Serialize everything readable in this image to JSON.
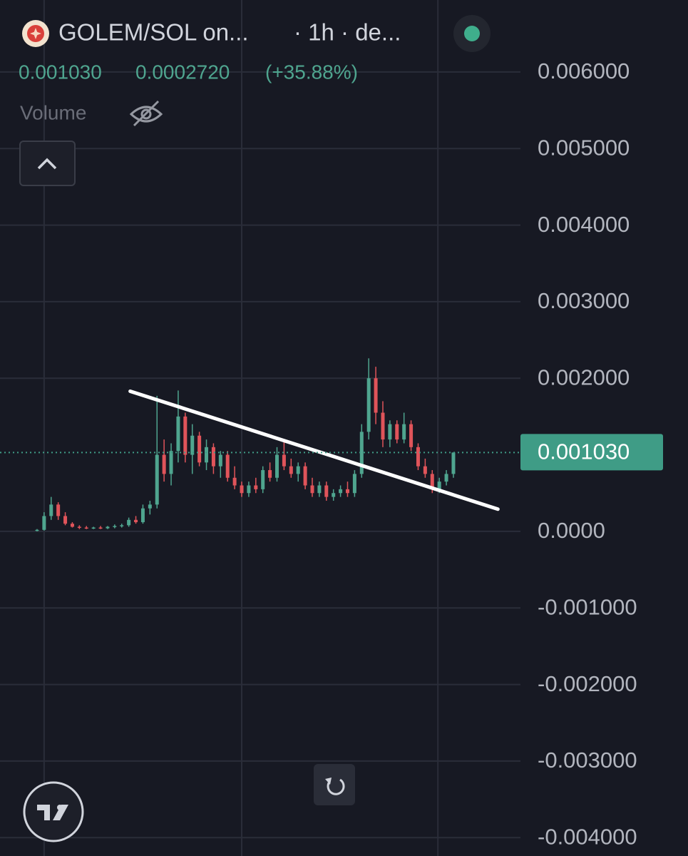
{
  "header": {
    "symbol": "GOLEM/SOL on...",
    "interval": "· 1h · de...",
    "price": "0.001030",
    "change": "0.0002720",
    "change_pct": "(+35.88%)",
    "volume_label": "Volume"
  },
  "chart_data": {
    "type": "candlestick",
    "open": [
      1e-05,
      2e-05,
      0.0002,
      0.00035,
      0.0002,
      0.0001,
      6e-05,
      5e-05,
      4e-05,
      5e-05,
      4e-05,
      6e-05,
      7e-05,
      8e-05,
      0.00015,
      0.00012,
      0.0003,
      0.00035,
      0.001,
      0.00075,
      0.00105,
      0.0015,
      0.001,
      0.00125,
      0.0009,
      0.0011,
      0.00085,
      0.001,
      0.0007,
      0.0006,
      0.0005,
      0.0006,
      0.00055,
      0.0008,
      0.0007,
      0.001,
      0.00085,
      0.00075,
      0.00085,
      0.0006,
      0.0005,
      0.0006,
      0.00045,
      0.0005,
      0.00055,
      0.0005,
      0.00075,
      0.0013,
      0.002,
      0.00155,
      0.0012,
      0.0014,
      0.0012,
      0.0014,
      0.0011,
      0.00085,
      0.00075,
      0.00055,
      0.00065,
      0.00075
    ],
    "high": [
      3e-05,
      0.00025,
      0.00045,
      0.00038,
      0.00025,
      0.00012,
      8e-05,
      7e-05,
      6e-05,
      7e-05,
      7e-05,
      9e-05,
      0.0001,
      0.00018,
      0.0002,
      0.00035,
      0.0004,
      0.00177,
      0.0012,
      0.00115,
      0.00184,
      0.00155,
      0.0014,
      0.0013,
      0.0012,
      0.00115,
      0.00105,
      0.00105,
      0.00085,
      0.00065,
      0.00065,
      0.0007,
      0.00085,
      0.0009,
      0.0011,
      0.00118,
      0.00095,
      0.0009,
      0.0009,
      0.0007,
      0.00065,
      0.00065,
      0.00055,
      0.0006,
      0.00065,
      0.0008,
      0.0014,
      0.00226,
      0.00215,
      0.0017,
      0.00145,
      0.00145,
      0.00155,
      0.00145,
      0.00115,
      0.00095,
      0.0008,
      0.0007,
      0.0008,
      0.00103
    ],
    "low": [
      0,
      1e-05,
      0.00015,
      0.00015,
      8e-05,
      5e-05,
      3e-05,
      3e-05,
      3e-05,
      3e-05,
      3e-05,
      4e-05,
      5e-05,
      6e-05,
      0.0001,
      0.0001,
      0.00022,
      0.0003,
      0.00065,
      0.0006,
      0.0009,
      0.0009,
      0.00075,
      0.00085,
      0.0008,
      0.00075,
      0.0007,
      0.00065,
      0.00055,
      0.00045,
      0.00045,
      0.0005,
      0.0005,
      0.00065,
      0.00065,
      0.0008,
      0.0007,
      0.00065,
      0.00055,
      0.00045,
      0.00045,
      0.0004,
      0.0004,
      0.00045,
      0.00045,
      0.00045,
      0.0007,
      0.0012,
      0.0014,
      0.0011,
      0.0011,
      0.00115,
      0.00115,
      0.00105,
      0.0008,
      0.0007,
      0.0005,
      0.0005,
      0.0006,
      0.0007
    ],
    "close": [
      2e-05,
      0.0002,
      0.00035,
      0.0002,
      0.0001,
      6e-05,
      5e-05,
      4e-05,
      5e-05,
      4e-05,
      6e-05,
      7e-05,
      8e-05,
      0.00015,
      0.00012,
      0.0003,
      0.00035,
      0.001,
      0.00075,
      0.00105,
      0.0015,
      0.001,
      0.00125,
      0.0009,
      0.0011,
      0.00085,
      0.001,
      0.0007,
      0.0006,
      0.0005,
      0.0006,
      0.00055,
      0.0008,
      0.0007,
      0.001,
      0.00085,
      0.00075,
      0.00085,
      0.0006,
      0.0005,
      0.0006,
      0.00045,
      0.0005,
      0.00055,
      0.0005,
      0.00075,
      0.0013,
      0.002,
      0.00155,
      0.0012,
      0.0014,
      0.0012,
      0.0014,
      0.0011,
      0.00085,
      0.00075,
      0.00055,
      0.00065,
      0.00075,
      0.00103
    ],
    "up_color": "#4fa58f",
    "down_color": "#e0545a",
    "xlim": [
      -5.25,
      68.5
    ],
    "xticks": [
      1,
      29,
      56.8
    ],
    "ylim": [
      -0.00424,
      0.00694
    ],
    "yticks": [
      {
        "value": 0.006,
        "label": "0.006000"
      },
      {
        "value": 0.005,
        "label": "0.005000"
      },
      {
        "value": 0.004,
        "label": "0.004000"
      },
      {
        "value": 0.003,
        "label": "0.003000"
      },
      {
        "value": 0.002,
        "label": "0.002000"
      },
      {
        "value": 0,
        "label": "0.0000"
      },
      {
        "value": -0.001,
        "label": "-0.001000"
      },
      {
        "value": -0.002,
        "label": "-0.002000"
      },
      {
        "value": -0.003,
        "label": "-0.003000"
      },
      {
        "value": -0.004,
        "label": "-0.004000"
      }
    ],
    "grid": true,
    "last_price": {
      "value": 0.00103,
      "label": "0.001030",
      "color": "#3f9c86"
    },
    "trendline": {
      "x": [
        13.2,
        65.3
      ],
      "y": [
        0.00183,
        0.00029
      ],
      "color": "#ffffff"
    }
  }
}
